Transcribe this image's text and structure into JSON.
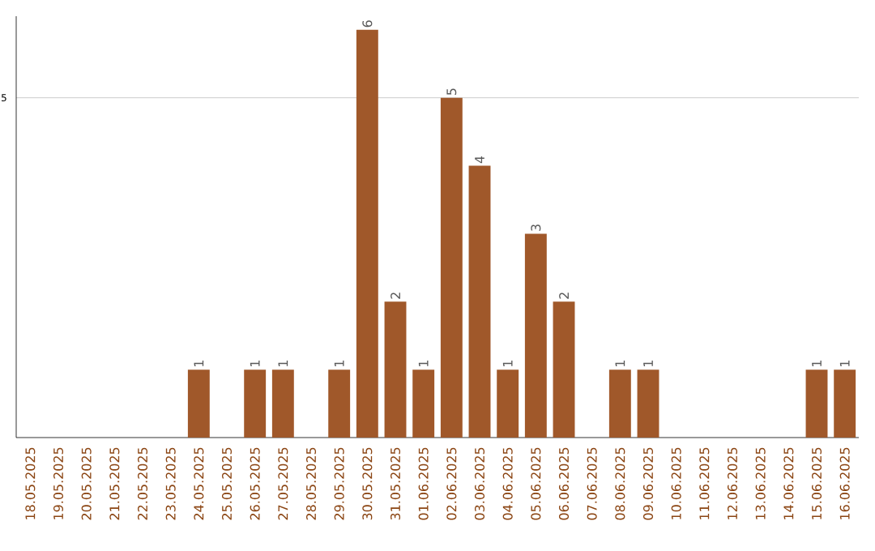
{
  "chart_data": {
    "type": "bar",
    "categories": [
      "18.05.2025",
      "19.05.2025",
      "20.05.2025",
      "21.05.2025",
      "22.05.2025",
      "23.05.2025",
      "24.05.2025",
      "25.05.2025",
      "26.05.2025",
      "27.05.2025",
      "28.05.2025",
      "29.05.2025",
      "30.05.2025",
      "31.05.2025",
      "01.06.2025",
      "02.06.2025",
      "03.06.2025",
      "04.06.2025",
      "05.06.2025",
      "06.06.2025",
      "07.06.2025",
      "08.06.2025",
      "09.06.2025",
      "10.06.2025",
      "11.06.2025",
      "12.06.2025",
      "13.06.2025",
      "14.06.2025",
      "15.06.2025",
      "16.06.2025"
    ],
    "values": [
      0,
      0,
      0,
      0,
      0,
      0,
      1,
      0,
      1,
      1,
      0,
      1,
      6,
      2,
      1,
      5,
      4,
      1,
      3,
      2,
      0,
      1,
      1,
      0,
      0,
      0,
      0,
      0,
      1,
      1
    ],
    "value_labels": [
      null,
      null,
      null,
      null,
      null,
      null,
      "1",
      null,
      "1",
      "1",
      null,
      "1",
      "6",
      "2",
      "1",
      "5",
      "4",
      "1",
      "3",
      "2",
      null,
      "1",
      "1",
      null,
      null,
      null,
      null,
      null,
      "1",
      "1"
    ],
    "color": "#a0582a",
    "ylim": [
      0,
      6.2
    ],
    "yticks": [
      5
    ],
    "grid": "y"
  }
}
